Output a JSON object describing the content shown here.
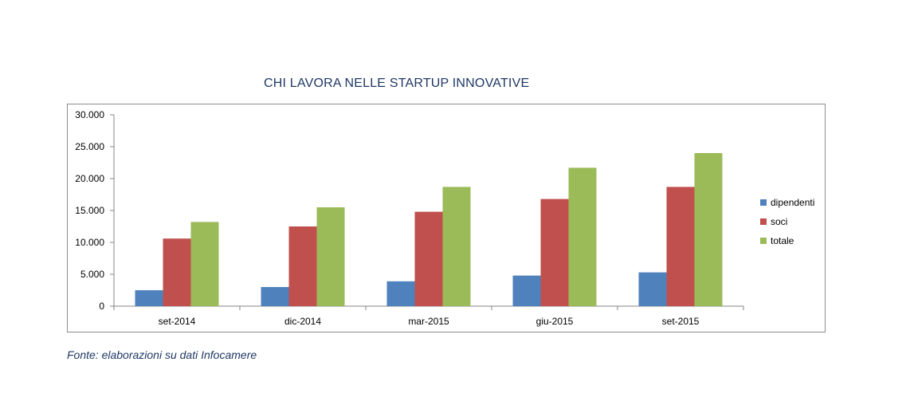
{
  "chart_data": {
    "type": "bar",
    "title": "CHI LAVORA NELLE STARTUP INNOVATIVE",
    "categories": [
      "set-2014",
      "dic-2014",
      "mar-2015",
      "giu-2015",
      "set-2015"
    ],
    "series": [
      {
        "name": "dipendenti",
        "color": "#4f81bd",
        "values": [
          2500,
          3000,
          3900,
          4800,
          5300
        ]
      },
      {
        "name": "soci",
        "color": "#c0504d",
        "values": [
          10600,
          12500,
          14800,
          16800,
          18700
        ]
      },
      {
        "name": "totale",
        "color": "#9bbb59",
        "values": [
          13200,
          15500,
          18700,
          21700,
          24000
        ]
      }
    ],
    "y_ticks": [
      "0",
      "5.000",
      "10.000",
      "15.000",
      "20.000",
      "25.000",
      "30.000"
    ],
    "ylim": [
      0,
      30000
    ],
    "grid": false,
    "legend_position": "right"
  },
  "source_note": "Fonte: elaborazioni su dati Infocamere"
}
